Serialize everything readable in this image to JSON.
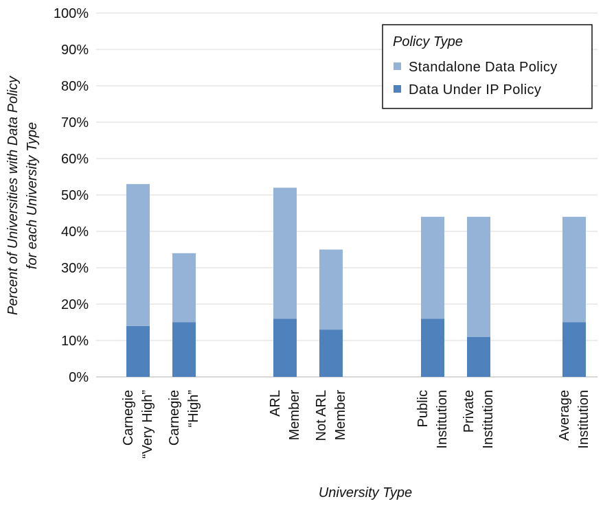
{
  "chart_data": {
    "type": "bar",
    "stacked": true,
    "categories": [
      [
        "Carnegie",
        "“Very High”"
      ],
      [
        "Carnegie",
        "“High”"
      ],
      [
        "ARL",
        "Member"
      ],
      [
        "Not ARL",
        "Member"
      ],
      [
        "Public",
        "Institution"
      ],
      [
        "Private",
        "Institution"
      ],
      [
        "Average",
        "Institution"
      ]
    ],
    "series": [
      {
        "name": "Data Under IP Policy",
        "values": [
          14,
          15,
          16,
          13,
          16,
          11,
          15
        ],
        "color": "#4F81BD"
      },
      {
        "name": "Standalone Data Policy",
        "values": [
          39,
          19,
          36,
          22,
          28,
          33,
          29
        ],
        "color": "#95B3D7"
      }
    ],
    "totals": [
      53,
      34,
      52,
      35,
      44,
      44,
      44
    ],
    "xlabel": "University Type",
    "ylabel": [
      "Percent of Universities with Data Policy",
      "for each University Type"
    ],
    "ylim": [
      0,
      100
    ],
    "yticks": [
      "0%",
      "10%",
      "20%",
      "30%",
      "40%",
      "50%",
      "60%",
      "70%",
      "80%",
      "90%",
      "100%"
    ],
    "grid": true,
    "legend": {
      "title": "Policy Type",
      "position": "top-right",
      "entries": [
        {
          "label": "Standalone Data Policy",
          "color": "#95B3D7"
        },
        {
          "label": "Data Under IP Policy",
          "color": "#4F81BD"
        }
      ]
    }
  }
}
